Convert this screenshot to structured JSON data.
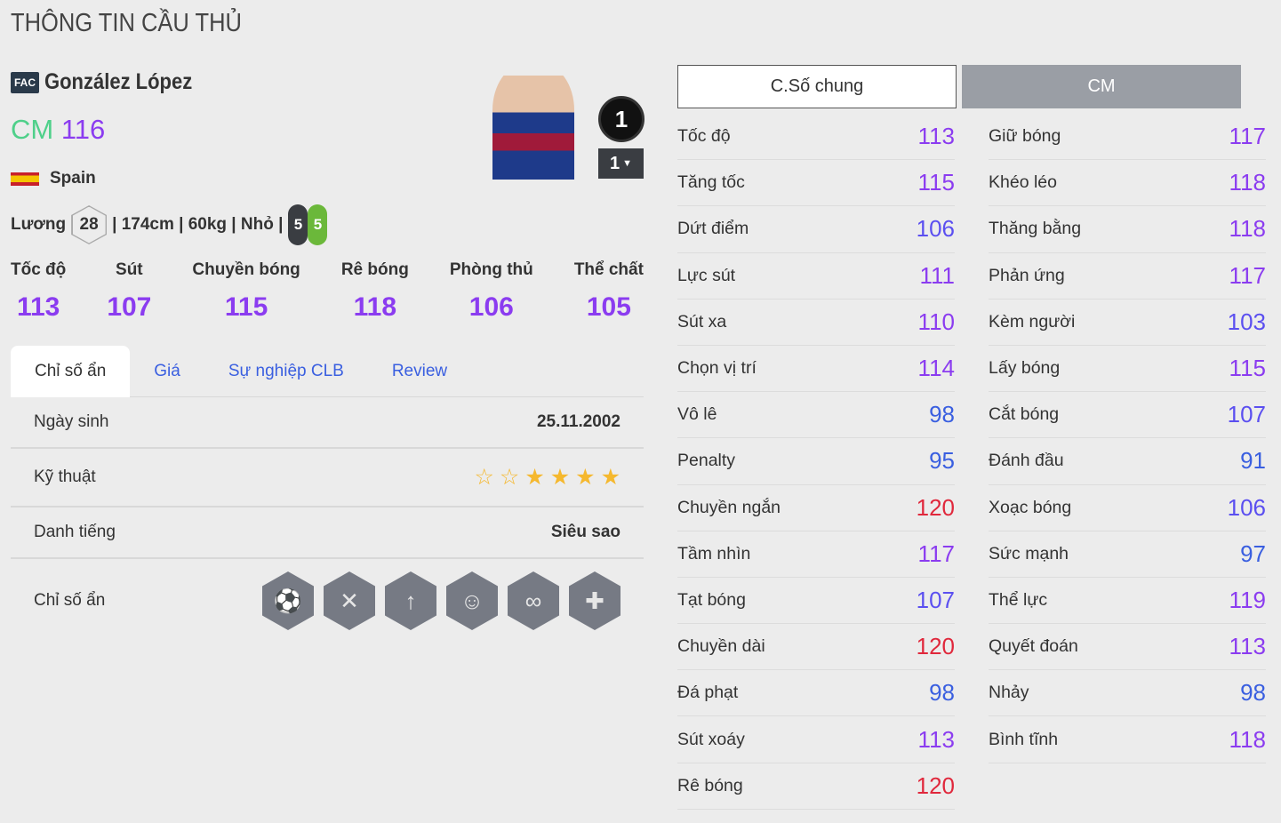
{
  "title": "THÔNG TIN CẦU THỦ",
  "player": {
    "season_badge": "FAC",
    "name": "González López",
    "position": "CM",
    "overall": "116",
    "nation": "Spain",
    "salary_label": "Lương",
    "salary": "28",
    "info": "| 174cm | 60kg | Nhỏ |",
    "left_foot": "5",
    "right_foot": "5",
    "upgrade_badge": "1",
    "level_select": "1"
  },
  "summary": [
    {
      "label": "Tốc độ",
      "value": "113"
    },
    {
      "label": "Sút",
      "value": "107"
    },
    {
      "label": "Chuyền bóng",
      "value": "115"
    },
    {
      "label": "Rê bóng",
      "value": "118"
    },
    {
      "label": "Phòng thủ",
      "value": "106"
    },
    {
      "label": "Thể chất",
      "value": "105"
    }
  ],
  "tabs": [
    "Chỉ số ẩn",
    "Giá",
    "Sự nghiệp CLB",
    "Review"
  ],
  "info_rows": {
    "birth_label": "Ngày sinh",
    "birth": "25.11.2002",
    "skill_label": "Kỹ thuật",
    "skill_stars": 4,
    "skill_stars_max": 6,
    "rep_label": "Danh tiếng",
    "rep": "Siêu sao",
    "traits_label": "Chỉ số ẩn"
  },
  "traits": [
    "long-shot-icon",
    "flair-pass-icon",
    "power-header-icon",
    "playmaker-icon",
    "dribbler-icon",
    "chip-shot-icon"
  ],
  "stat_tabs": [
    "C.Số chung",
    "CM"
  ],
  "colors": {
    "tier90": "#3a5fe0",
    "tier100": "#5b4ff0",
    "tier110": "#8b3cf0",
    "tier120": "#e0283c"
  },
  "stats_left": [
    {
      "label": "Tốc độ",
      "value": "113"
    },
    {
      "label": "Tăng tốc",
      "value": "115"
    },
    {
      "label": "Dứt điểm",
      "value": "106"
    },
    {
      "label": "Lực sút",
      "value": "111"
    },
    {
      "label": "Sút xa",
      "value": "110"
    },
    {
      "label": "Chọn vị trí",
      "value": "114"
    },
    {
      "label": "Vô lê",
      "value": "98"
    },
    {
      "label": "Penalty",
      "value": "95"
    },
    {
      "label": "Chuyền ngắn",
      "value": "120"
    },
    {
      "label": "Tầm nhìn",
      "value": "117"
    },
    {
      "label": "Tạt bóng",
      "value": "107"
    },
    {
      "label": "Chuyền dài",
      "value": "120"
    },
    {
      "label": "Đá phạt",
      "value": "98"
    },
    {
      "label": "Sút xoáy",
      "value": "113"
    },
    {
      "label": "Rê bóng",
      "value": "120"
    }
  ],
  "stats_right": [
    {
      "label": "Giữ bóng",
      "value": "117"
    },
    {
      "label": "Khéo léo",
      "value": "118"
    },
    {
      "label": "Thăng bằng",
      "value": "118"
    },
    {
      "label": "Phản ứng",
      "value": "117"
    },
    {
      "label": "Kèm người",
      "value": "103"
    },
    {
      "label": "Lấy bóng",
      "value": "115"
    },
    {
      "label": "Cắt bóng",
      "value": "107"
    },
    {
      "label": "Đánh đầu",
      "value": "91"
    },
    {
      "label": "Xoạc bóng",
      "value": "106"
    },
    {
      "label": "Sức mạnh",
      "value": "97"
    },
    {
      "label": "Thể lực",
      "value": "119"
    },
    {
      "label": "Quyết đoán",
      "value": "113"
    },
    {
      "label": "Nhảy",
      "value": "98"
    },
    {
      "label": "Bình tĩnh",
      "value": "118"
    }
  ]
}
